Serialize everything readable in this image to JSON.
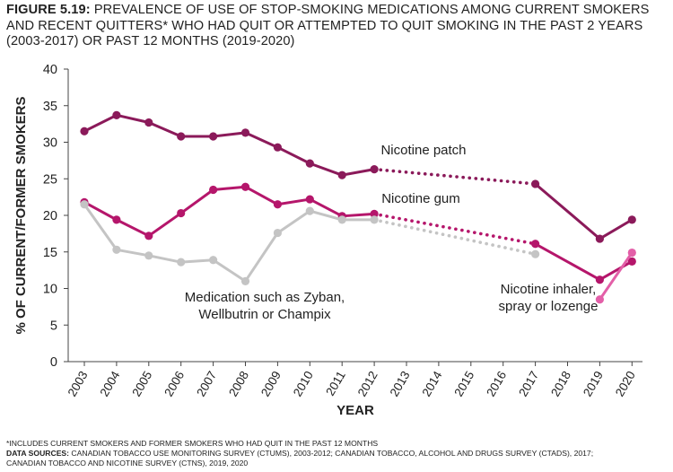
{
  "title": {
    "figure_label": "FIGURE 5.19:",
    "text": "PREVALENCE OF USE OF STOP-SMOKING MEDICATIONS AMONG CURRENT SMOKERS AND RECENT QUITTERS* WHO HAD QUIT OR ATTEMPTED TO QUIT SMOKING IN THE PAST 2 YEARS (2003-2017) OR PAST 12 MONTHS (2019-2020)"
  },
  "footnote": {
    "asterisk_note": "*INCLUDES CURRENT SMOKERS AND FORMER SMOKERS WHO HAD QUIT IN THE PAST 12 MONTHS",
    "sources_label": "DATA SOURCES:",
    "sources_text": "CANADIAN TOBACCO USE MONITORING SURVEY (CTUMS), 2003-2012; CANADIAN TOBACCO, ALCOHOL AND DRUGS SURVEY (CTADS), 2017;",
    "sources_text_2": "CANADIAN TOBACCO AND NICOTINE SURVEY (CTNS), 2019, 2020"
  },
  "chart_data": {
    "type": "line",
    "xlabel": "YEAR",
    "ylabel": "% OF CURRENT/FORMER SMOKERS",
    "ylim": [
      0,
      40
    ],
    "yticks": [
      0,
      5,
      10,
      15,
      20,
      25,
      30,
      35,
      40
    ],
    "categories": [
      "2003",
      "2004",
      "2005",
      "2006",
      "2007",
      "2008",
      "2009",
      "2010",
      "2011",
      "2012",
      "2013",
      "2014",
      "2015",
      "2016",
      "2017",
      "2018",
      "2019",
      "2020"
    ],
    "grid": false,
    "series": [
      {
        "name": "Nicotine patch",
        "label_lines": [
          "Nicotine patch"
        ],
        "color": "#8b1a5a",
        "points": [
          {
            "x": "2003",
            "y": 31.5
          },
          {
            "x": "2004",
            "y": 33.7
          },
          {
            "x": "2005",
            "y": 32.7
          },
          {
            "x": "2006",
            "y": 30.8
          },
          {
            "x": "2007",
            "y": 30.8
          },
          {
            "x": "2008",
            "y": 31.3
          },
          {
            "x": "2009",
            "y": 29.3
          },
          {
            "x": "2010",
            "y": 27.1
          },
          {
            "x": "2011",
            "y": 25.5
          },
          {
            "x": "2012",
            "y": 26.3
          },
          {
            "x": "2017",
            "y": 24.3
          },
          {
            "x": "2019",
            "y": 16.8
          },
          {
            "x": "2020",
            "y": 19.4
          }
        ]
      },
      {
        "name": "Nicotine gum",
        "label_lines": [
          "Nicotine gum"
        ],
        "color": "#b5166b",
        "points": [
          {
            "x": "2003",
            "y": 21.8
          },
          {
            "x": "2004",
            "y": 19.4
          },
          {
            "x": "2005",
            "y": 17.2
          },
          {
            "x": "2006",
            "y": 20.3
          },
          {
            "x": "2007",
            "y": 23.5
          },
          {
            "x": "2008",
            "y": 23.9
          },
          {
            "x": "2009",
            "y": 21.5
          },
          {
            "x": "2010",
            "y": 22.2
          },
          {
            "x": "2011",
            "y": 19.9
          },
          {
            "x": "2012",
            "y": 20.2
          },
          {
            "x": "2017",
            "y": 16.1
          },
          {
            "x": "2019",
            "y": 11.2
          },
          {
            "x": "2020",
            "y": 13.7
          }
        ]
      },
      {
        "name": "Medication such as Zyban, Wellbutrin or Champix",
        "label_lines": [
          "Medication such as Zyban,",
          "Wellbutrin or Champix"
        ],
        "color": "#c4c4c4",
        "points": [
          {
            "x": "2003",
            "y": 21.5
          },
          {
            "x": "2004",
            "y": 15.3
          },
          {
            "x": "2005",
            "y": 14.5
          },
          {
            "x": "2006",
            "y": 13.6
          },
          {
            "x": "2007",
            "y": 13.9
          },
          {
            "x": "2008",
            "y": 11.0
          },
          {
            "x": "2009",
            "y": 17.6
          },
          {
            "x": "2010",
            "y": 20.6
          },
          {
            "x": "2011",
            "y": 19.4
          },
          {
            "x": "2012",
            "y": 19.4
          },
          {
            "x": "2017",
            "y": 14.7
          }
        ]
      },
      {
        "name": "Nicotine inhaler, spray or lozenge",
        "label_lines": [
          "Nicotine inhaler,",
          "spray or lozenge"
        ],
        "color": "#e35fa8",
        "points": [
          {
            "x": "2019",
            "y": 8.5
          },
          {
            "x": "2020",
            "y": 14.9
          }
        ]
      }
    ]
  }
}
